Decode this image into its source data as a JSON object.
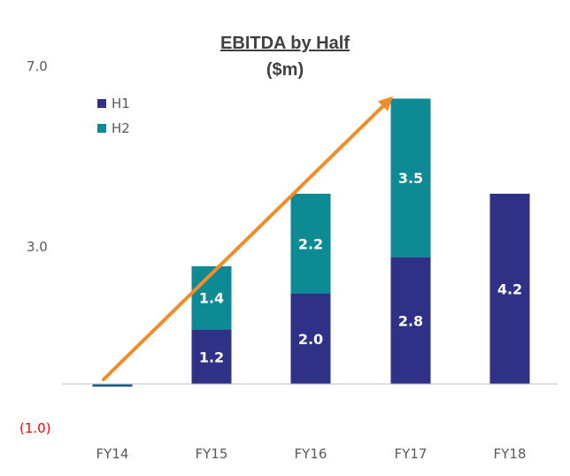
{
  "chart_data": {
    "type": "bar",
    "stacked": true,
    "title": "EBITDA by Half",
    "subtitle": "($m)",
    "categories": [
      "FY14",
      "FY15",
      "FY16",
      "FY17",
      "FY18"
    ],
    "series": [
      {
        "name": "H1",
        "values": [
          -0.05,
          1.2,
          2.0,
          2.8,
          4.2
        ],
        "labels": [
          "",
          "1.2",
          "2.0",
          "2.8",
          "4.2"
        ],
        "color": "#2e3185"
      },
      {
        "name": "H2",
        "values": [
          0.0,
          1.4,
          2.2,
          3.5,
          0
        ],
        "labels": [
          "",
          "1.4",
          "2.2",
          "3.5",
          ""
        ],
        "color": "#0e8a94"
      }
    ],
    "fy14_bar_color": "#1f5f8b",
    "yticks": [
      {
        "value": 7.0,
        "label": "7.0",
        "color": "#595959"
      },
      {
        "value": 3.0,
        "label": "3.0",
        "color": "#595959"
      },
      {
        "value": -1.0,
        "label": "(1.0)",
        "color": "#ff0000"
      }
    ],
    "ylim": [
      -1.0,
      7.0
    ],
    "grid": false,
    "legend_position": "top-left",
    "trend_arrow": {
      "from": {
        "x": "FY14",
        "y": 0.1
      },
      "to": {
        "x": "FY17",
        "y": 6.35
      },
      "color": "#f28c28"
    }
  }
}
